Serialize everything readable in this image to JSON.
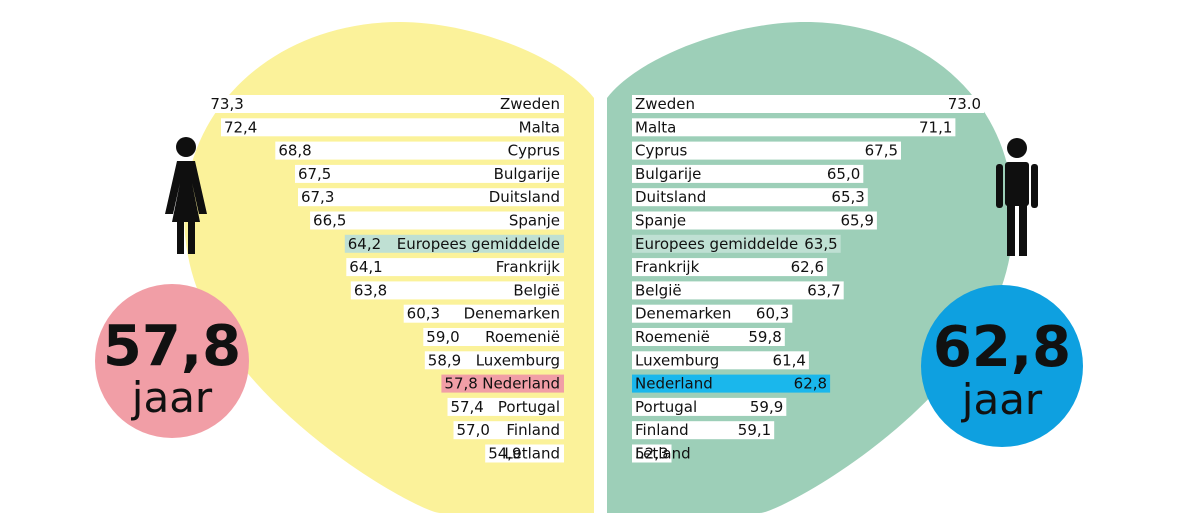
{
  "colors": {
    "women_shape": "#fbf29a",
    "men_shape": "#9dcfb8",
    "women_circle": "#f19ea6",
    "men_circle": "#0ea0e0",
    "bar_default": "#ffffff",
    "bar_average": "#bfe0d3",
    "bar_nederland_women": "#f19ea6",
    "bar_nederland_men": "#1ab7ec",
    "figure": "#0f0f0f"
  },
  "icons": {
    "women_figure": "woman-icon",
    "men_figure": "man-icon"
  },
  "women_summary": {
    "value": "57,8",
    "unit": "jaar"
  },
  "men_summary": {
    "value": "62,8",
    "unit": "jaar"
  },
  "chart_data": [
    {
      "type": "bar",
      "orientation": "horizontal",
      "direction": "right-to-left",
      "title": "",
      "categories": [
        "Zweden",
        "Malta",
        "Cyprus",
        "Bulgarije",
        "Duitsland",
        "Spanje",
        "Europees gemiddelde",
        "Frankrijk",
        "België",
        "Denemarken",
        "Roemenië",
        "Luxemburg",
        "Nederland",
        "Portugal",
        "Finland",
        "Letland"
      ],
      "labels": [
        "73,3",
        "72,4",
        "68,8",
        "67,5",
        "67,3",
        "66,5",
        "64,2",
        "64,1",
        "63,8",
        "60,3",
        "59,0",
        "58,9",
        "57,8",
        "57,4",
        "57,0",
        "54,9"
      ],
      "values": [
        73.3,
        72.4,
        68.8,
        67.5,
        67.3,
        66.5,
        64.2,
        64.1,
        63.8,
        60.3,
        59.0,
        58.9,
        57.8,
        57.4,
        57.0,
        54.9
      ],
      "highlight": {
        "Europees gemiddelde": "bar_average",
        "Nederland": "bar_nederland_women"
      }
    },
    {
      "type": "bar",
      "orientation": "horizontal",
      "direction": "left-to-right",
      "title": "",
      "categories": [
        "Zweden",
        "Malta",
        "Cyprus",
        "Bulgarije",
        "Duitsland",
        "Spanje",
        "Europees gemiddelde",
        "Frankrijk",
        "België",
        "Denemarken",
        "Roemenië",
        "Luxemburg",
        "Nederland",
        "Portugal",
        "Finland",
        "Letland"
      ],
      "labels": [
        "73.0",
        "71,1",
        "67,5",
        "65,0",
        "65,3",
        "65,9",
        "63,5",
        "62,6",
        "63,7",
        "60,3",
        "59,8",
        "61,4",
        "62,8",
        "59,9",
        "59,1",
        "52,3"
      ],
      "values": [
        73.0,
        71.1,
        67.5,
        65.0,
        65.3,
        65.9,
        63.5,
        62.6,
        63.7,
        60.3,
        59.8,
        61.4,
        62.8,
        59.9,
        59.1,
        52.3
      ],
      "highlight": {
        "Europees gemiddelde": "bar_average",
        "Nederland": "bar_nederland_men"
      }
    }
  ]
}
